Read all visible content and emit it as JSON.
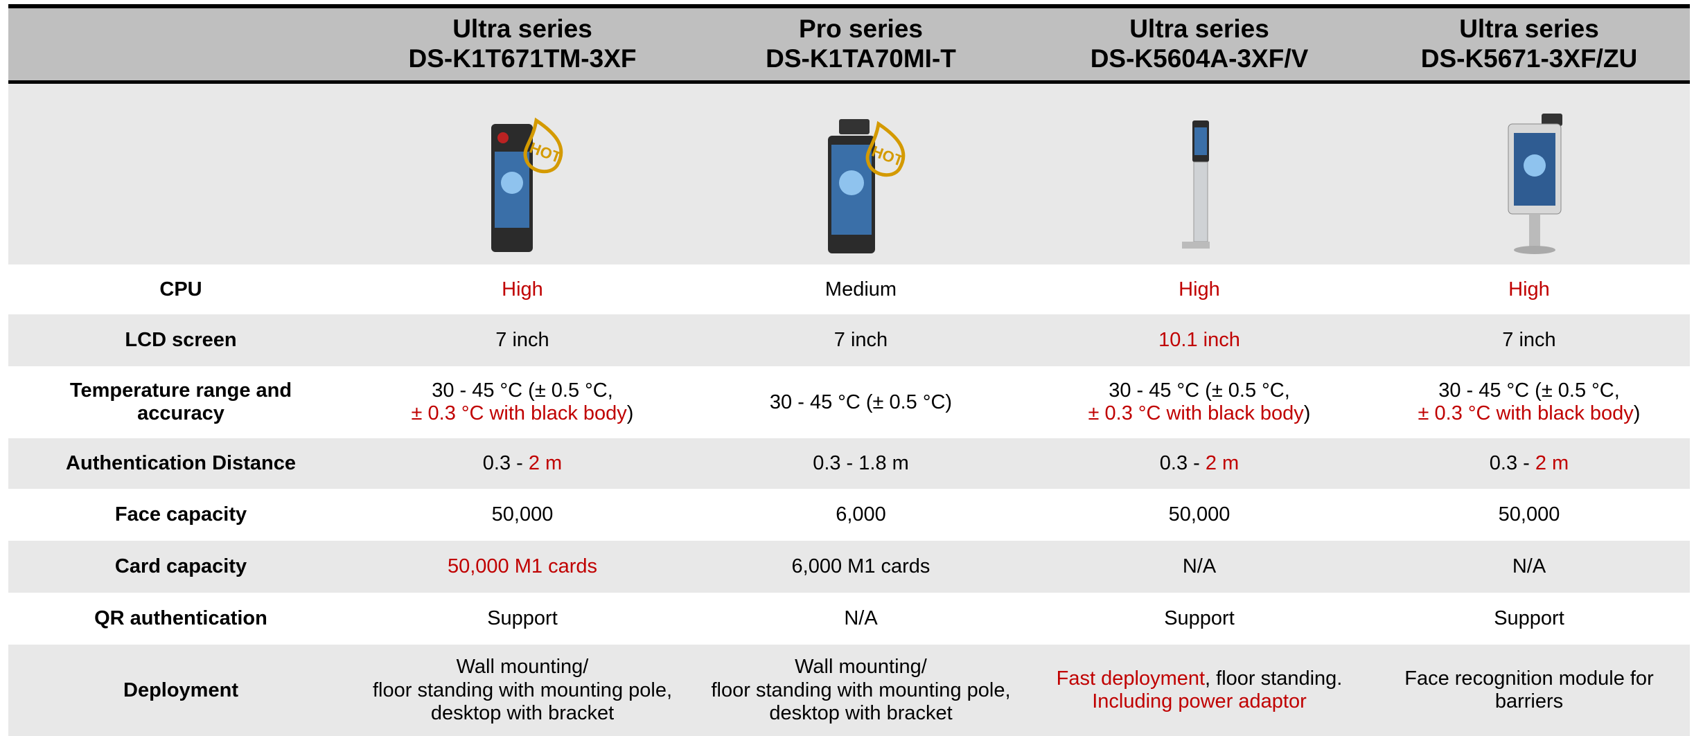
{
  "header": {
    "columns": [
      {
        "series": "Ultra series",
        "model": "DS-K1T671TM-3XF",
        "badge": "HOT"
      },
      {
        "series": "Pro series",
        "model": "DS-K1TA70MI-T",
        "badge": "HOT"
      },
      {
        "series": "Ultra series",
        "model": "DS-K5604A-3XF/V"
      },
      {
        "series": "Ultra series",
        "model": "DS-K5671-3XF/ZU"
      }
    ]
  },
  "rows": [
    {
      "label": "CPU",
      "cells": [
        [
          {
            "text": "High",
            "color": "#c00000"
          }
        ],
        [
          {
            "text": "Medium",
            "color": "#000000"
          }
        ],
        [
          {
            "text": "High",
            "color": "#c00000"
          }
        ],
        [
          {
            "text": "High",
            "color": "#c00000"
          }
        ]
      ]
    },
    {
      "label": "LCD screen",
      "cells": [
        [
          {
            "text": "7 inch",
            "color": "#000000"
          }
        ],
        [
          {
            "text": "7 inch",
            "color": "#000000"
          }
        ],
        [
          {
            "text": "10.1 inch",
            "color": "#c00000"
          }
        ],
        [
          {
            "text": "7 inch",
            "color": "#000000"
          }
        ]
      ]
    },
    {
      "label": "Temperature range and\naccuracy",
      "cells": [
        [
          {
            "text": "30 - 45 °C (± 0.5 °C,\n",
            "color": "#000000"
          },
          {
            "text": "± 0.3 °C with black body",
            "color": "#c00000"
          },
          {
            "text": ")",
            "color": "#000000"
          }
        ],
        [
          {
            "text": "30 - 45 °C (± 0.5 °C)",
            "color": "#000000"
          }
        ],
        [
          {
            "text": "30 - 45 °C (± 0.5 °C,\n",
            "color": "#000000"
          },
          {
            "text": "± 0.3 °C with black body",
            "color": "#c00000"
          },
          {
            "text": ")",
            "color": "#000000"
          }
        ],
        [
          {
            "text": "30 - 45 °C (± 0.5 °C,\n",
            "color": "#000000"
          },
          {
            "text": "± 0.3 °C with black body",
            "color": "#c00000"
          },
          {
            "text": ")",
            "color": "#000000"
          }
        ]
      ]
    },
    {
      "label": "Authentication Distance",
      "cells": [
        [
          {
            "text": "0.3 - ",
            "color": "#000000"
          },
          {
            "text": "2 m",
            "color": "#c00000"
          }
        ],
        [
          {
            "text": "0.3 - 1.8 m",
            "color": "#000000"
          }
        ],
        [
          {
            "text": "0.3 - ",
            "color": "#000000"
          },
          {
            "text": "2 m",
            "color": "#c00000"
          }
        ],
        [
          {
            "text": "0.3 - ",
            "color": "#000000"
          },
          {
            "text": "2 m",
            "color": "#c00000"
          }
        ]
      ]
    },
    {
      "label": "Face capacity",
      "cells": [
        [
          {
            "text": "50,000",
            "color": "#000000"
          }
        ],
        [
          {
            "text": "6,000",
            "color": "#000000"
          }
        ],
        [
          {
            "text": "50,000",
            "color": "#000000"
          }
        ],
        [
          {
            "text": "50,000",
            "color": "#000000"
          }
        ]
      ]
    },
    {
      "label": "Card capacity",
      "cells": [
        [
          {
            "text": "50,000 M1 cards",
            "color": "#c00000"
          }
        ],
        [
          {
            "text": "6,000 M1 cards",
            "color": "#000000"
          }
        ],
        [
          {
            "text": "N/A",
            "color": "#000000"
          }
        ],
        [
          {
            "text": "N/A",
            "color": "#000000"
          }
        ]
      ]
    },
    {
      "label": "QR authentication",
      "cells": [
        [
          {
            "text": "Support",
            "color": "#000000"
          }
        ],
        [
          {
            "text": "N/A",
            "color": "#000000"
          }
        ],
        [
          {
            "text": "Support",
            "color": "#000000"
          }
        ],
        [
          {
            "text": "Support",
            "color": "#000000"
          }
        ]
      ]
    },
    {
      "label": "Deployment",
      "cells": [
        [
          {
            "text": "Wall mounting/\nfloor standing with mounting pole,\ndesktop with bracket",
            "color": "#000000"
          }
        ],
        [
          {
            "text": "Wall mounting/\nfloor standing with mounting pole,\ndesktop with bracket",
            "color": "#000000"
          }
        ],
        [
          {
            "text": "Fast deployment",
            "color": "#c00000"
          },
          {
            "text": ", floor standing.\n",
            "color": "#000000"
          },
          {
            "text": "Including power adaptor",
            "color": "#c00000"
          }
        ],
        [
          {
            "text": "Face recognition module for\nbarriers",
            "color": "#000000"
          }
        ]
      ]
    }
  ]
}
